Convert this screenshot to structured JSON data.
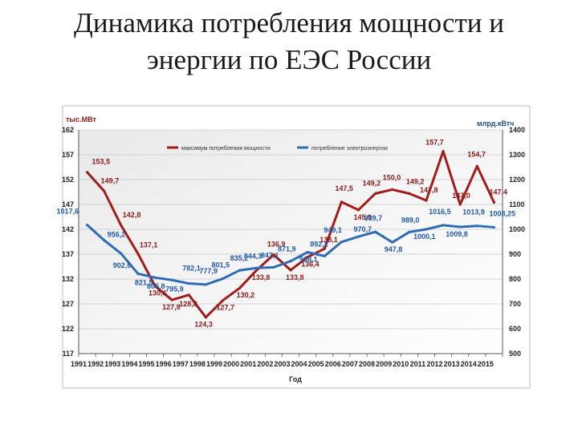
{
  "slide": {
    "title_line1": "Динамика потребления мощности и",
    "title_line2": "энергии по ЕЭС России"
  },
  "chart_data": {
    "type": "line",
    "x": [
      "1991",
      "1992",
      "1993",
      "1994",
      "1995",
      "1996",
      "1997",
      "1998",
      "1999",
      "2000",
      "2001",
      "2002",
      "2003",
      "2004",
      "2005",
      "2006",
      "2007",
      "2008",
      "2009",
      "2010",
      "2011",
      "2012",
      "2013",
      "2014",
      "2015"
    ],
    "xlabel": "Год",
    "y_left": {
      "unit": "тыс.МВт",
      "range": [
        117,
        162
      ],
      "ticks": [
        "117",
        "122",
        "127",
        "132",
        "137",
        "142",
        "147",
        "152",
        "157",
        "162"
      ]
    },
    "y_right": {
      "unit": "млрд.кВтч",
      "range": [
        500,
        1400
      ],
      "ticks": [
        "500",
        "600",
        "700",
        "800",
        "900",
        "1000",
        "1100",
        "1200",
        "1300",
        "1400"
      ]
    },
    "legend_position": "top",
    "grid": true,
    "series": [
      {
        "name": "максимум потребления мощности",
        "axis": "left",
        "color": "#a31c1c",
        "values": [
          153.5,
          149.7,
          142.8,
          137.1,
          130.6,
          127.8,
          128.8,
          124.3,
          127.7,
          130.2,
          133.8,
          136.9,
          133.8,
          136.4,
          138.1,
          147.5,
          145.9,
          149.2,
          150.0,
          149.2,
          147.8,
          157.7,
          147.0,
          154.7,
          147.4
        ],
        "labels": [
          "153,5",
          "149,7",
          "142,8",
          "137,1",
          "130,6",
          "127,8",
          "128,8",
          "124,3",
          "127,7",
          "130,2",
          "133,8",
          "136,9",
          "133,8",
          "136,4",
          "138,1",
          "147,5",
          "145,9",
          "149,2",
          "150,0",
          "149,2",
          "147,8",
          "157,7",
          "147,0",
          "154,7",
          "147,4"
        ]
      },
      {
        "name": "потребление электроэнергии",
        "axis": "right",
        "color": "#2e6db5",
        "values": [
          1017.6,
          956.2,
          902.6,
          821.5,
          805.8,
          795.9,
          782.1,
          777.9,
          801.5,
          835.2,
          844.3,
          847.1,
          871.9,
          908.1,
          892.2,
          949.1,
          970.7,
          989.7,
          947.8,
          989.0,
          1000.1,
          1016.5,
          1009.8,
          1013.9,
          1008.25
        ],
        "labels": [
          "1017,6",
          "956,2",
          "902,6",
          "821,5",
          "805,8",
          "795,9",
          "782,1",
          "777,9",
          "801,5",
          "835,2",
          "844,3",
          "847,1",
          "871,9",
          "908,1",
          "892,2",
          "949,1",
          "970,7",
          "989,7",
          "947,8",
          "989,0",
          "1000,1",
          "1016,5",
          "1009,8",
          "1013,9",
          "1008,25"
        ]
      }
    ]
  }
}
